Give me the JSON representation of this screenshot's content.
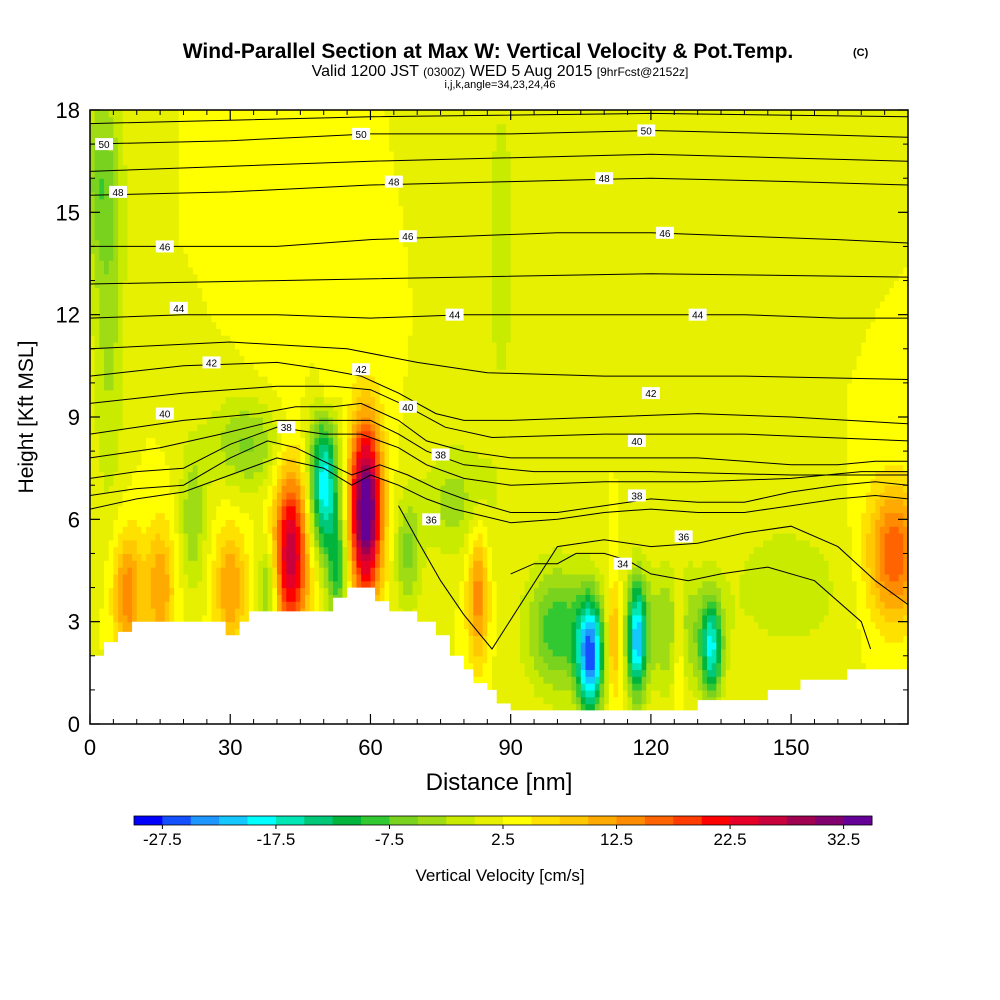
{
  "chart_data": {
    "type": "heatmap",
    "title": "Wind-Parallel Section at Max W: Vertical Velocity & Pot.Temp.",
    "title_units": "(C)",
    "subtitle": {
      "valid": "Valid 1200 JST",
      "utc": "(0300Z)",
      "date": "WED 5 Aug 2015",
      "forecast": "[9hrFcst@2152z]"
    },
    "params": "i,j,k,angle=34,23,24,46",
    "xlabel": "Distance [nm]",
    "ylabel": "Height [Kft MSL]",
    "xlim": [
      0,
      175
    ],
    "ylim": [
      0,
      18
    ],
    "xticks": [
      0,
      30,
      60,
      90,
      120,
      150
    ],
    "yticks": [
      0,
      3,
      6,
      9,
      12,
      15,
      18
    ],
    "background_w": 2.5,
    "w_cells": [
      {
        "x": 43,
        "y": 5.0,
        "sx": 2.6,
        "sy": 1.8,
        "w": 24
      },
      {
        "x": 59,
        "y": 6.3,
        "sx": 2.4,
        "sy": 1.8,
        "w": 34
      },
      {
        "x": 50,
        "y": 7.0,
        "sx": 2.2,
        "sy": 1.4,
        "w": -22
      },
      {
        "x": 107,
        "y": 2.0,
        "sx": 2.0,
        "sy": 1.2,
        "w": -27
      },
      {
        "x": 117,
        "y": 2.5,
        "sx": 1.4,
        "sy": 1.2,
        "w": -22
      },
      {
        "x": 133,
        "y": 2.2,
        "sx": 1.6,
        "sy": 1.0,
        "w": -18
      },
      {
        "x": 100,
        "y": 2.8,
        "sx": 4.5,
        "sy": 1.3,
        "w": -12
      },
      {
        "x": 125,
        "y": 2.8,
        "sx": 6.0,
        "sy": 1.3,
        "w": -8
      },
      {
        "x": 83,
        "y": 3.8,
        "sx": 1.6,
        "sy": 1.4,
        "w": 12
      },
      {
        "x": 172,
        "y": 5.0,
        "sx": 4.0,
        "sy": 1.4,
        "w": 15
      },
      {
        "x": 112,
        "y": 2.5,
        "sx": 1.0,
        "sy": 1.2,
        "w": 10
      },
      {
        "x": 126,
        "y": 2.5,
        "sx": 1.0,
        "sy": 1.2,
        "w": 8
      },
      {
        "x": 8,
        "y": 3.8,
        "sx": 2.2,
        "sy": 1.3,
        "w": 12
      },
      {
        "x": 15,
        "y": 4.0,
        "sx": 2.2,
        "sy": 1.3,
        "w": 10
      },
      {
        "x": 30,
        "y": 4.0,
        "sx": 2.4,
        "sy": 1.3,
        "w": 10
      },
      {
        "x": 38,
        "y": 4.0,
        "sx": 1.4,
        "sy": 1.0,
        "w": -10
      },
      {
        "x": 53,
        "y": 4.5,
        "sx": 1.6,
        "sy": 1.2,
        "w": -12
      },
      {
        "x": 68,
        "y": 5.0,
        "sx": 2.0,
        "sy": 1.2,
        "w": -8
      },
      {
        "x": 78,
        "y": 6.5,
        "sx": 5.0,
        "sy": 1.2,
        "w": -6
      },
      {
        "x": 34,
        "y": 8.2,
        "sx": 6.0,
        "sy": 1.0,
        "w": -8
      },
      {
        "x": 4,
        "y": 12.0,
        "sx": 2.5,
        "sy": 4.0,
        "w": -6
      },
      {
        "x": 2,
        "y": 16.0,
        "sx": 3.0,
        "sy": 1.8,
        "w": -7
      },
      {
        "x": 22,
        "y": 6.0,
        "sx": 2.0,
        "sy": 1.5,
        "w": -7
      },
      {
        "x": 150,
        "y": 4.0,
        "sx": 9.0,
        "sy": 1.5,
        "w": -4
      },
      {
        "x": 88,
        "y": 14.0,
        "sx": 4.0,
        "sy": 6.0,
        "w": -3
      },
      {
        "x": 140,
        "y": 14.0,
        "sx": 6.0,
        "sy": 5.0,
        "w": -2
      },
      {
        "x": 51,
        "y": 10.0,
        "sx": 1.5,
        "sy": 0.6,
        "w": 4
      },
      {
        "x": 40,
        "y": 12.0,
        "sx": 4.0,
        "sy": 3.0,
        "w": 1.5
      }
    ],
    "terrain": [
      [
        0,
        2.0
      ],
      [
        3,
        2.0
      ],
      [
        3,
        2.4
      ],
      [
        6,
        2.4
      ],
      [
        6,
        2.7
      ],
      [
        9,
        2.7
      ],
      [
        9,
        3.0
      ],
      [
        29,
        3.0
      ],
      [
        29,
        2.6
      ],
      [
        32,
        2.6
      ],
      [
        32,
        3.0
      ],
      [
        34,
        3.0
      ],
      [
        34,
        3.3
      ],
      [
        52,
        3.3
      ],
      [
        52,
        3.7
      ],
      [
        55,
        3.7
      ],
      [
        55,
        4.0
      ],
      [
        61,
        4.0
      ],
      [
        61,
        3.6
      ],
      [
        64,
        3.6
      ],
      [
        64,
        3.3
      ],
      [
        70,
        3.3
      ],
      [
        70,
        3.0
      ],
      [
        74,
        3.0
      ],
      [
        74,
        2.6
      ],
      [
        77,
        2.6
      ],
      [
        77,
        2.0
      ],
      [
        80,
        2.0
      ],
      [
        80,
        1.6
      ],
      [
        82,
        1.6
      ],
      [
        82,
        1.2
      ],
      [
        85,
        1.2
      ],
      [
        85,
        1.0
      ],
      [
        87,
        1.0
      ],
      [
        87,
        0.6
      ],
      [
        90,
        0.6
      ],
      [
        90,
        0.4
      ],
      [
        130,
        0.4
      ],
      [
        130,
        0.7
      ],
      [
        145,
        0.7
      ],
      [
        145,
        1.0
      ],
      [
        152,
        1.0
      ],
      [
        152,
        1.3
      ],
      [
        162,
        1.3
      ],
      [
        162,
        1.6
      ],
      [
        175,
        1.6
      ]
    ],
    "isentropes": [
      {
        "value": 34,
        "pts": [
          [
            90,
            4.4
          ],
          [
            95,
            4.7
          ],
          [
            100,
            4.7
          ],
          [
            104,
            5.0
          ],
          [
            110,
            5.0
          ],
          [
            115,
            4.8
          ],
          [
            120,
            4.4
          ],
          [
            128,
            4.2
          ],
          [
            135,
            4.4
          ],
          [
            145,
            4.6
          ],
          [
            155,
            4.2
          ],
          [
            165,
            3.0
          ],
          [
            167,
            2.2
          ]
        ]
      },
      {
        "value": 36,
        "pts": [
          [
            66,
            6.4
          ],
          [
            70,
            5.4
          ],
          [
            75,
            4.2
          ],
          [
            80,
            3.2
          ],
          [
            86,
            2.2
          ],
          [
            100,
            5.2
          ],
          [
            110,
            5.4
          ],
          [
            120,
            5.2
          ],
          [
            130,
            5.3
          ],
          [
            140,
            5.6
          ],
          [
            150,
            5.8
          ],
          [
            160,
            5.2
          ],
          [
            168,
            4.2
          ],
          [
            175,
            3.5
          ]
        ]
      },
      {
        "value": 38,
        "pts": [
          [
            0,
            6.7
          ],
          [
            10,
            6.9
          ],
          [
            20,
            7.0
          ],
          [
            30,
            7.8
          ],
          [
            38,
            8.3
          ],
          [
            44,
            8.1
          ],
          [
            50,
            7.7
          ],
          [
            56,
            7.3
          ],
          [
            62,
            7.6
          ],
          [
            68,
            7.3
          ],
          [
            74,
            6.9
          ],
          [
            80,
            6.6
          ],
          [
            90,
            6.2
          ],
          [
            100,
            6.2
          ],
          [
            110,
            6.4
          ],
          [
            120,
            6.6
          ],
          [
            130,
            6.5
          ],
          [
            140,
            6.5
          ],
          [
            150,
            6.8
          ],
          [
            160,
            7.0
          ],
          [
            168,
            7.1
          ],
          [
            175,
            7.0
          ]
        ]
      },
      {
        "value": 40,
        "pts": [
          [
            0,
            8.5
          ],
          [
            10,
            8.7
          ],
          [
            20,
            8.9
          ],
          [
            28,
            9.0
          ],
          [
            36,
            9.1
          ],
          [
            44,
            9.3
          ],
          [
            52,
            9.3
          ],
          [
            58,
            9.4
          ],
          [
            66,
            8.9
          ],
          [
            72,
            8.3
          ],
          [
            80,
            8.0
          ],
          [
            90,
            7.8
          ],
          [
            100,
            7.8
          ],
          [
            110,
            7.8
          ],
          [
            120,
            7.8
          ],
          [
            130,
            7.8
          ],
          [
            140,
            7.7
          ],
          [
            150,
            7.6
          ],
          [
            160,
            7.6
          ],
          [
            168,
            7.7
          ],
          [
            175,
            7.7
          ]
        ]
      },
      {
        "value": 42,
        "pts": [
          [
            0,
            10.2
          ],
          [
            20,
            10.5
          ],
          [
            40,
            10.6
          ],
          [
            50,
            10.4
          ],
          [
            58,
            10.2
          ],
          [
            66,
            9.7
          ],
          [
            74,
            9.1
          ],
          [
            80,
            8.9
          ],
          [
            90,
            8.9
          ],
          [
            110,
            9.0
          ],
          [
            130,
            9.1
          ],
          [
            150,
            9.0
          ],
          [
            175,
            8.8
          ]
        ]
      },
      {
        "value": 44,
        "pts": [
          [
            0,
            11.9
          ],
          [
            20,
            12.0
          ],
          [
            40,
            12.0
          ],
          [
            60,
            11.9
          ],
          [
            80,
            12.0
          ],
          [
            100,
            12.0
          ],
          [
            120,
            12.0
          ],
          [
            140,
            12.0
          ],
          [
            160,
            11.9
          ],
          [
            175,
            11.9
          ]
        ]
      },
      {
        "value": 46,
        "pts": [
          [
            0,
            14.0
          ],
          [
            20,
            14.0
          ],
          [
            40,
            14.0
          ],
          [
            60,
            14.2
          ],
          [
            80,
            14.3
          ],
          [
            100,
            14.4
          ],
          [
            120,
            14.4
          ],
          [
            140,
            14.3
          ],
          [
            160,
            14.2
          ],
          [
            175,
            14.1
          ]
        ]
      },
      {
        "value": 48,
        "pts": [
          [
            0,
            15.5
          ],
          [
            30,
            15.6
          ],
          [
            60,
            15.8
          ],
          [
            90,
            15.9
          ],
          [
            120,
            16.0
          ],
          [
            150,
            15.9
          ],
          [
            175,
            15.8
          ]
        ]
      },
      {
        "value": 50,
        "pts": [
          [
            0,
            17.0
          ],
          [
            30,
            17.1
          ],
          [
            60,
            17.3
          ],
          [
            90,
            17.3
          ],
          [
            120,
            17.4
          ],
          [
            150,
            17.3
          ],
          [
            175,
            17.2
          ]
        ]
      }
    ],
    "extra_lines": [
      [
        [
          0,
          6.3
        ],
        [
          10,
          6.6
        ],
        [
          20,
          6.8
        ],
        [
          30,
          7.3
        ],
        [
          40,
          7.8
        ],
        [
          50,
          7.5
        ],
        [
          56,
          7.0
        ],
        [
          60,
          7.3
        ],
        [
          66,
          7.0
        ],
        [
          72,
          6.6
        ],
        [
          78,
          6.3
        ],
        [
          84,
          6.1
        ],
        [
          90,
          5.9
        ],
        [
          100,
          6.0
        ],
        [
          110,
          6.2
        ],
        [
          120,
          6.3
        ],
        [
          130,
          6.2
        ],
        [
          140,
          6.2
        ],
        [
          150,
          6.4
        ],
        [
          160,
          6.6
        ],
        [
          168,
          6.7
        ],
        [
          175,
          6.6
        ]
      ],
      [
        [
          0,
          7.2
        ],
        [
          10,
          7.4
        ],
        [
          20,
          7.5
        ],
        [
          30,
          8.2
        ],
        [
          40,
          8.7
        ],
        [
          50,
          8.5
        ],
        [
          58,
          8.5
        ],
        [
          66,
          8.1
        ],
        [
          72,
          7.6
        ],
        [
          80,
          7.2
        ],
        [
          90,
          7.0
        ],
        [
          110,
          7.1
        ],
        [
          130,
          7.1
        ],
        [
          150,
          7.2
        ],
        [
          165,
          7.4
        ],
        [
          175,
          7.4
        ]
      ],
      [
        [
          0,
          7.8
        ],
        [
          15,
          8.1
        ],
        [
          28,
          8.5
        ],
        [
          40,
          8.9
        ],
        [
          52,
          8.9
        ],
        [
          60,
          8.9
        ],
        [
          66,
          8.5
        ],
        [
          72,
          8.0
        ],
        [
          80,
          7.6
        ],
        [
          95,
          7.4
        ],
        [
          120,
          7.4
        ],
        [
          150,
          7.3
        ],
        [
          175,
          7.3
        ]
      ],
      [
        [
          0,
          9.4
        ],
        [
          20,
          9.7
        ],
        [
          40,
          9.9
        ],
        [
          52,
          9.9
        ],
        [
          60,
          9.8
        ],
        [
          68,
          9.3
        ],
        [
          76,
          8.7
        ],
        [
          86,
          8.4
        ],
        [
          110,
          8.5
        ],
        [
          140,
          8.5
        ],
        [
          175,
          8.3
        ]
      ],
      [
        [
          0,
          11.0
        ],
        [
          30,
          11.2
        ],
        [
          55,
          11.0
        ],
        [
          70,
          10.6
        ],
        [
          85,
          10.3
        ],
        [
          110,
          10.2
        ],
        [
          140,
          10.2
        ],
        [
          175,
          10.1
        ]
      ],
      [
        [
          0,
          12.9
        ],
        [
          40,
          13.0
        ],
        [
          80,
          13.1
        ],
        [
          120,
          13.2
        ],
        [
          175,
          13.1
        ]
      ],
      [
        [
          0,
          16.2
        ],
        [
          60,
          16.5
        ],
        [
          120,
          16.7
        ],
        [
          175,
          16.5
        ]
      ],
      [
        [
          0,
          17.6
        ],
        [
          60,
          17.8
        ],
        [
          120,
          17.9
        ],
        [
          175,
          17.8
        ]
      ]
    ],
    "contour_labels": [
      {
        "text": "50",
        "x": 3,
        "y": 17.0
      },
      {
        "text": "50",
        "x": 58,
        "y": 17.3
      },
      {
        "text": "50",
        "x": 119,
        "y": 17.4
      },
      {
        "text": "48",
        "x": 6,
        "y": 15.6
      },
      {
        "text": "48",
        "x": 65,
        "y": 15.9
      },
      {
        "text": "48",
        "x": 110,
        "y": 16.0
      },
      {
        "text": "46",
        "x": 16,
        "y": 14.0
      },
      {
        "text": "46",
        "x": 68,
        "y": 14.3
      },
      {
        "text": "46",
        "x": 123,
        "y": 14.4
      },
      {
        "text": "44",
        "x": 19,
        "y": 12.2
      },
      {
        "text": "44",
        "x": 78,
        "y": 12.0
      },
      {
        "text": "44",
        "x": 130,
        "y": 12.0
      },
      {
        "text": "42",
        "x": 26,
        "y": 10.6
      },
      {
        "text": "42",
        "x": 58,
        "y": 10.4
      },
      {
        "text": "42",
        "x": 120,
        "y": 9.7
      },
      {
        "text": "40",
        "x": 16,
        "y": 9.1
      },
      {
        "text": "40",
        "x": 68,
        "y": 9.3
      },
      {
        "text": "40",
        "x": 117,
        "y": 8.3
      },
      {
        "text": "38",
        "x": 42,
        "y": 8.7
      },
      {
        "text": "38",
        "x": 75,
        "y": 7.9
      },
      {
        "text": "38",
        "x": 117,
        "y": 6.7
      },
      {
        "text": "36",
        "x": 73,
        "y": 6.0
      },
      {
        "text": "36",
        "x": 127,
        "y": 5.5
      },
      {
        "text": "34",
        "x": 114,
        "y": 4.7
      }
    ],
    "colorbar": {
      "label": "Vertical Velocity [cm/s]",
      "min": -30,
      "max": 35,
      "step": 2.5,
      "ticks": [
        "-27.5",
        "-17.5",
        "-7.5",
        "2.5",
        "12.5",
        "22.5",
        "32.5"
      ],
      "tick_values": [
        -27.5,
        -17.5,
        -7.5,
        2.5,
        12.5,
        22.5,
        32.5
      ],
      "colors": [
        "#0000ff",
        "#1450ff",
        "#1e96ff",
        "#14c8ff",
        "#00ffff",
        "#00e6b4",
        "#00c878",
        "#00b43c",
        "#32c832",
        "#78d21e",
        "#a0dc14",
        "#c8eb00",
        "#e6f000",
        "#ffff00",
        "#ffe100",
        "#ffc800",
        "#ffaa00",
        "#ff8c00",
        "#ff6400",
        "#ff3c00",
        "#ff0000",
        "#e60028",
        "#c8003c",
        "#a00050",
        "#82006e",
        "#640096"
      ]
    }
  }
}
